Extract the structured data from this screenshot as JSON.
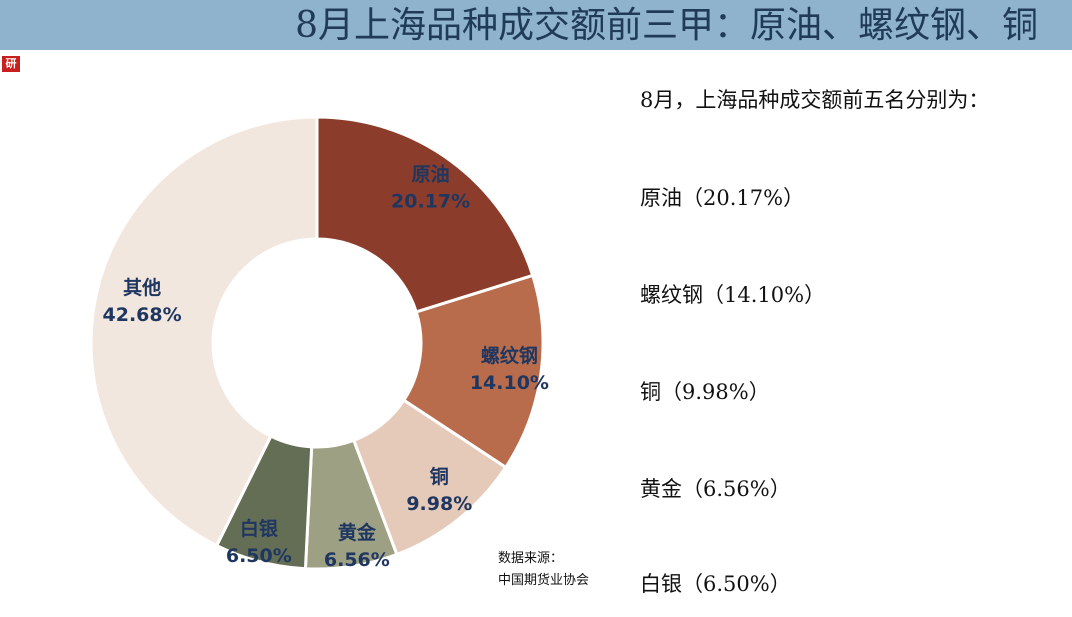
{
  "header": {
    "title": "8月上海品种成交额前三甲：原油、螺纹钢、铜"
  },
  "logo_icon": "institution-logo-icon",
  "chart_data": {
    "type": "pie",
    "title": "",
    "slices": [
      {
        "label": "原油",
        "value": 20.17,
        "display": "20.17%",
        "color": "#8b3c2a"
      },
      {
        "label": "螺纹钢",
        "value": 14.1,
        "display": "14.10%",
        "color": "#b96c4c"
      },
      {
        "label": "铜",
        "value": 9.98,
        "display": "9.98%",
        "color": "#e5cab9"
      },
      {
        "label": "黄金",
        "value": 6.56,
        "display": "6.56%",
        "color": "#9ea083"
      },
      {
        "label": "白银",
        "value": 6.5,
        "display": "6.50%",
        "color": "#646e55"
      },
      {
        "label": "其他",
        "value": 42.68,
        "display": "42.68%",
        "color": "#f2e7de"
      }
    ],
    "label_color": "#1f3760"
  },
  "source": {
    "line1": "数据来源：",
    "line2": "中国期货业协会"
  },
  "summary": {
    "intro": "8月，上海品种成交额前五名分别为：",
    "items": [
      "原油（20.17%）",
      "螺纹钢（14.10%）",
      "铜（9.98%）",
      "黄金（6.56%）",
      "白银（6.50%）"
    ]
  }
}
